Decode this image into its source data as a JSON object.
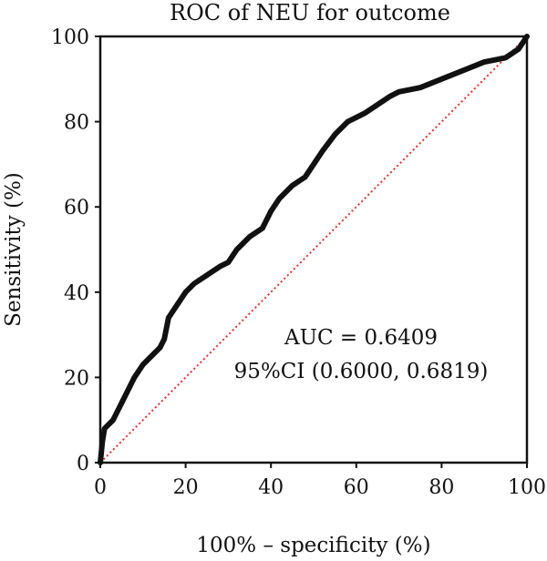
{
  "chart_data": {
    "type": "line",
    "title": "ROC of NEU for outcome",
    "xlabel": "100% – specificity (%)",
    "ylabel": "Sensitivity (%)",
    "xlim": [
      0,
      100
    ],
    "ylim": [
      0,
      100
    ],
    "x_ticks": [
      0,
      20,
      40,
      60,
      80,
      100
    ],
    "y_ticks": [
      0,
      20,
      40,
      60,
      80,
      100
    ],
    "grid": false,
    "annotations": [
      "AUC = 0.6409",
      "95%CI (0.6000, 0.6819)"
    ],
    "colors": {
      "roc": "#111111",
      "reference": "#e03030"
    },
    "series": [
      {
        "style": "solid-thick",
        "x": [
          0,
          0.5,
          1,
          2,
          3,
          4,
          5,
          6,
          7,
          8,
          10,
          12,
          14,
          15,
          16,
          18,
          20,
          22,
          25,
          28,
          30,
          32,
          35,
          38,
          40,
          42,
          45,
          48,
          50,
          52,
          55,
          58,
          60,
          62,
          65,
          68,
          70,
          75,
          80,
          85,
          90,
          95,
          98,
          100
        ],
        "y": [
          0,
          5,
          8,
          9,
          10,
          12,
          14,
          16,
          18,
          20,
          23,
          25,
          27,
          29,
          34,
          37,
          40,
          42,
          44,
          46,
          47,
          50,
          53,
          55,
          59,
          62,
          65,
          67,
          70,
          73,
          77,
          80,
          81,
          82,
          84,
          86,
          87,
          88,
          90,
          92,
          94,
          95,
          97,
          100
        ]
      },
      {
        "style": "dotted",
        "x": [
          0,
          100
        ],
        "y": [
          0,
          100
        ]
      }
    ]
  }
}
